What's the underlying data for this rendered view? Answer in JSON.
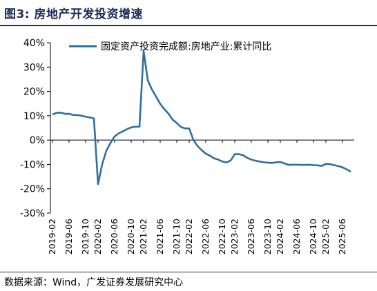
{
  "header": {
    "figure_title": "图3:  房地产开发投资增速"
  },
  "footer": {
    "source": "数据来源：Wind，广发证券发展研究中心"
  },
  "colors": {
    "line": "#2e6f9e",
    "title": "#1a2c5b",
    "axis": "#000000"
  },
  "chart_data": {
    "type": "line",
    "title": "",
    "xlabel": "",
    "ylabel": "",
    "ylim": [
      -30,
      40
    ],
    "y_ticks": [
      "-30%",
      "-20%",
      "-10%",
      "0%",
      "10%",
      "20%",
      "30%",
      "40%"
    ],
    "y_tick_values": [
      -30,
      -20,
      -10,
      0,
      10,
      20,
      30,
      40
    ],
    "x_tick_labels": [
      "2019-02",
      "2019-06",
      "2019-10",
      "2020-02",
      "2020-06",
      "2020-10",
      "2021-02",
      "2021-06",
      "2021-10",
      "2022-02",
      "2022-06",
      "2022-10",
      "2023-02",
      "2023-06",
      "2023-10",
      "2024-02",
      "2024-06",
      "2024-10",
      "2025-02",
      "2025-06"
    ],
    "legend_position": "top",
    "series": [
      {
        "name": "固定资产投资完成额:房地产业:累计同比",
        "x": [
          "2019-02",
          "2019-03",
          "2019-04",
          "2019-05",
          "2019-06",
          "2019-07",
          "2019-08",
          "2019-09",
          "2019-10",
          "2019-11",
          "2019-12",
          "2020-02",
          "2020-03",
          "2020-04",
          "2020-05",
          "2020-06",
          "2020-07",
          "2020-08",
          "2020-09",
          "2020-10",
          "2020-11",
          "2020-12",
          "2021-02",
          "2021-03",
          "2021-04",
          "2021-05",
          "2021-06",
          "2021-07",
          "2021-08",
          "2021-09",
          "2021-10",
          "2021-11",
          "2021-12",
          "2022-02",
          "2022-03",
          "2022-04",
          "2022-05",
          "2022-06",
          "2022-07",
          "2022-08",
          "2022-09",
          "2022-10",
          "2022-11",
          "2022-12",
          "2023-02",
          "2023-03",
          "2023-04",
          "2023-05",
          "2023-06",
          "2023-07",
          "2023-08",
          "2023-09",
          "2023-10",
          "2023-11",
          "2023-12",
          "2024-02",
          "2024-03",
          "2024-04",
          "2024-05",
          "2024-06",
          "2024-07",
          "2024-08",
          "2024-09",
          "2024-10",
          "2024-11",
          "2024-12",
          "2025-02",
          "2025-03",
          "2025-04",
          "2025-05",
          "2025-06",
          "2025-07",
          "2025-08"
        ],
        "values": [
          10.5,
          11.2,
          11.3,
          10.8,
          10.8,
          10.3,
          10.3,
          10.0,
          9.6,
          9.3,
          8.9,
          -18.1,
          -9.9,
          -4.4,
          -1.2,
          1.5,
          2.8,
          3.6,
          4.5,
          5.2,
          5.5,
          5.5,
          36.6,
          24.6,
          20.8,
          17.9,
          14.9,
          12.7,
          10.9,
          8.4,
          7.0,
          5.4,
          4.8,
          4.8,
          0.1,
          -2.4,
          -4.1,
          -5.6,
          -6.4,
          -7.5,
          -8.0,
          -8.8,
          -9.2,
          -8.4,
          -5.8,
          -5.8,
          -6.2,
          -7.3,
          -8.0,
          -8.5,
          -8.8,
          -9.1,
          -9.3,
          -9.4,
          -9.1,
          -9.0,
          -9.6,
          -10.2,
          -10.1,
          -10.1,
          -10.2,
          -10.2,
          -10.1,
          -10.3,
          -10.4,
          -10.6,
          -9.8,
          -9.9,
          -10.3,
          -10.7,
          -11.2,
          -12.0,
          -13.0
        ]
      }
    ]
  }
}
